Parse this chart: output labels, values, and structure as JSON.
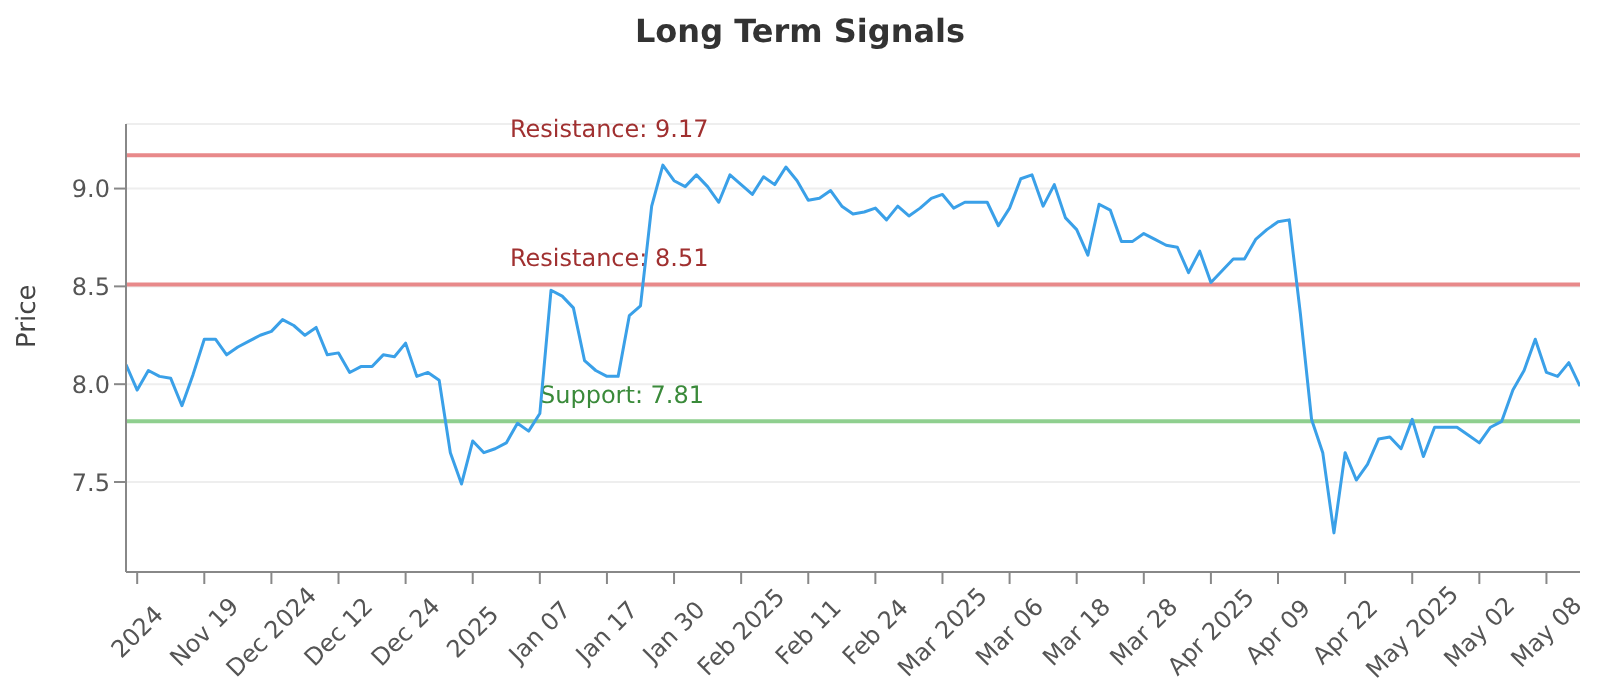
{
  "chart_data": {
    "type": "line",
    "title": "Long Term Signals",
    "ylabel": "Price",
    "categories": [
      null,
      "2024",
      null,
      null,
      null,
      null,
      null,
      "Nov 19",
      null,
      null,
      null,
      null,
      null,
      "Dec 2024",
      null,
      null,
      null,
      null,
      null,
      "Dec 12",
      null,
      null,
      null,
      null,
      null,
      "Dec 24",
      null,
      null,
      null,
      null,
      null,
      "2025",
      null,
      null,
      null,
      null,
      null,
      "Jan 07",
      null,
      null,
      null,
      null,
      null,
      "Jan 17",
      null,
      null,
      null,
      null,
      null,
      "Jan 30",
      null,
      null,
      null,
      null,
      null,
      "Feb 2025",
      null,
      null,
      null,
      null,
      null,
      "Feb 11",
      null,
      null,
      null,
      null,
      null,
      "Feb 24",
      null,
      null,
      null,
      null,
      null,
      "Mar 2025",
      null,
      null,
      null,
      null,
      null,
      "Mar 06",
      null,
      null,
      null,
      null,
      null,
      "Mar 18",
      null,
      null,
      null,
      null,
      null,
      "Mar 28",
      null,
      null,
      null,
      null,
      null,
      "Apr 2025",
      null,
      null,
      null,
      null,
      null,
      "Apr 09",
      null,
      null,
      null,
      null,
      null,
      "Apr 22",
      null,
      null,
      null,
      null,
      null,
      "May 2025",
      null,
      null,
      null,
      null,
      null,
      "May 02",
      null,
      null,
      null,
      null,
      null,
      "May 08",
      null,
      null,
      null
    ],
    "series": [
      {
        "color": "#3aa0e8",
        "values": [
          8.1,
          7.97,
          8.07,
          8.04,
          8.03,
          7.89,
          8.05,
          8.23,
          8.23,
          8.15,
          8.19,
          8.22,
          8.25,
          8.27,
          8.33,
          8.3,
          8.25,
          8.29,
          8.15,
          8.16,
          8.06,
          8.09,
          8.09,
          8.15,
          8.14,
          8.21,
          8.04,
          8.06,
          8.02,
          7.65,
          7.49,
          7.71,
          7.65,
          7.67,
          7.7,
          7.8,
          7.76,
          7.85,
          8.48,
          8.45,
          8.39,
          8.12,
          8.07,
          8.04,
          8.04,
          8.35,
          8.4,
          8.91,
          9.12,
          9.04,
          9.01,
          9.07,
          9.01,
          8.93,
          9.07,
          9.02,
          8.97,
          9.06,
          9.02,
          9.11,
          9.04,
          8.94,
          8.95,
          8.99,
          8.91,
          8.87,
          8.88,
          8.9,
          8.84,
          8.91,
          8.86,
          8.9,
          8.95,
          8.97,
          8.9,
          8.93,
          8.93,
          8.93,
          8.81,
          8.9,
          9.05,
          9.07,
          8.91,
          9.02,
          8.85,
          8.79,
          8.66,
          8.92,
          8.89,
          8.73,
          8.73,
          8.77,
          8.74,
          8.71,
          8.7,
          8.57,
          8.68,
          8.52,
          8.58,
          8.64,
          8.64,
          8.74,
          8.79,
          8.83,
          8.84,
          8.36,
          7.82,
          7.65,
          7.24,
          7.65,
          7.51,
          7.59,
          7.72,
          7.73,
          7.67,
          7.82,
          7.63,
          7.78,
          7.78,
          7.78,
          7.74,
          7.7,
          7.78,
          7.81,
          7.97,
          8.07,
          8.23,
          8.06,
          8.04,
          8.11,
          7.99
        ]
      }
    ],
    "ylim": [
      7.04,
      9.33
    ],
    "yticks": [
      7.5,
      {
        "value": 8,
        "label": "8.0"
      },
      8.5,
      {
        "value": 9,
        "label": "9.0"
      }
    ],
    "grid": "y",
    "marker": "none",
    "line_style": "solid",
    "legend": false,
    "ref_lines": [
      {
        "axis": "y",
        "value": 9.17,
        "label": "Resistance: 9.17",
        "color": "#e8898a"
      },
      {
        "axis": "y",
        "value": 8.51,
        "label": "Resistance: 8.51",
        "color": "#e8898a"
      },
      {
        "axis": "y",
        "value": 7.81,
        "label": "Support: 7.81",
        "color": "#8fcf8f"
      }
    ]
  }
}
